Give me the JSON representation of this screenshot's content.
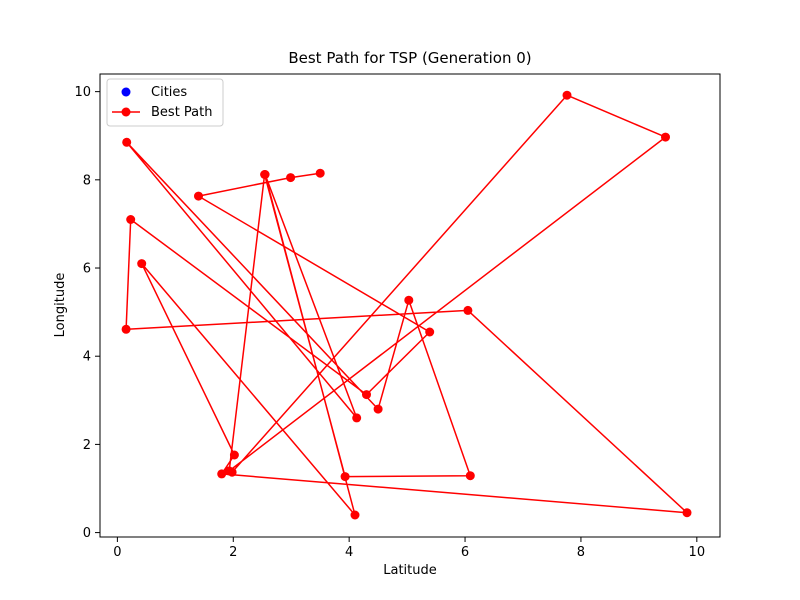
{
  "chart_data": {
    "type": "line",
    "title": "Best Path for TSP (Generation 0)",
    "xlabel": "Latitude",
    "ylabel": "Longitude",
    "xlim": [
      -0.3,
      10.4
    ],
    "ylim": [
      -0.1,
      10.4
    ],
    "xticks": [
      0,
      2,
      4,
      6,
      8,
      10
    ],
    "yticks": [
      0,
      2,
      4,
      6,
      8,
      10
    ],
    "grid": false,
    "legend_position": "top-left",
    "legend": [
      {
        "label": "Cities",
        "kind": "marker",
        "color": "#0000ff"
      },
      {
        "label": "Best Path",
        "kind": "line-marker",
        "color": "#ff0000"
      }
    ],
    "series": [
      {
        "name": "Best Path",
        "color": "#ff0000",
        "x": [
          3.5,
          2.99,
          1.4,
          5.39,
          4.3,
          0.23,
          0.15,
          6.05,
          9.83,
          1.8,
          2.02,
          0.42,
          4.1,
          2.55,
          4.13,
          0.16,
          4.5,
          5.03,
          6.09,
          3.93,
          2.54,
          1.93,
          9.46,
          7.76,
          1.98
        ],
        "y": [
          8.15,
          8.05,
          7.63,
          4.55,
          3.13,
          7.1,
          4.61,
          5.04,
          0.45,
          1.33,
          1.76,
          6.1,
          0.4,
          8.12,
          2.6,
          8.85,
          2.8,
          5.27,
          1.29,
          1.27,
          8.12,
          1.4,
          8.97,
          9.92,
          1.37
        ]
      }
    ]
  }
}
